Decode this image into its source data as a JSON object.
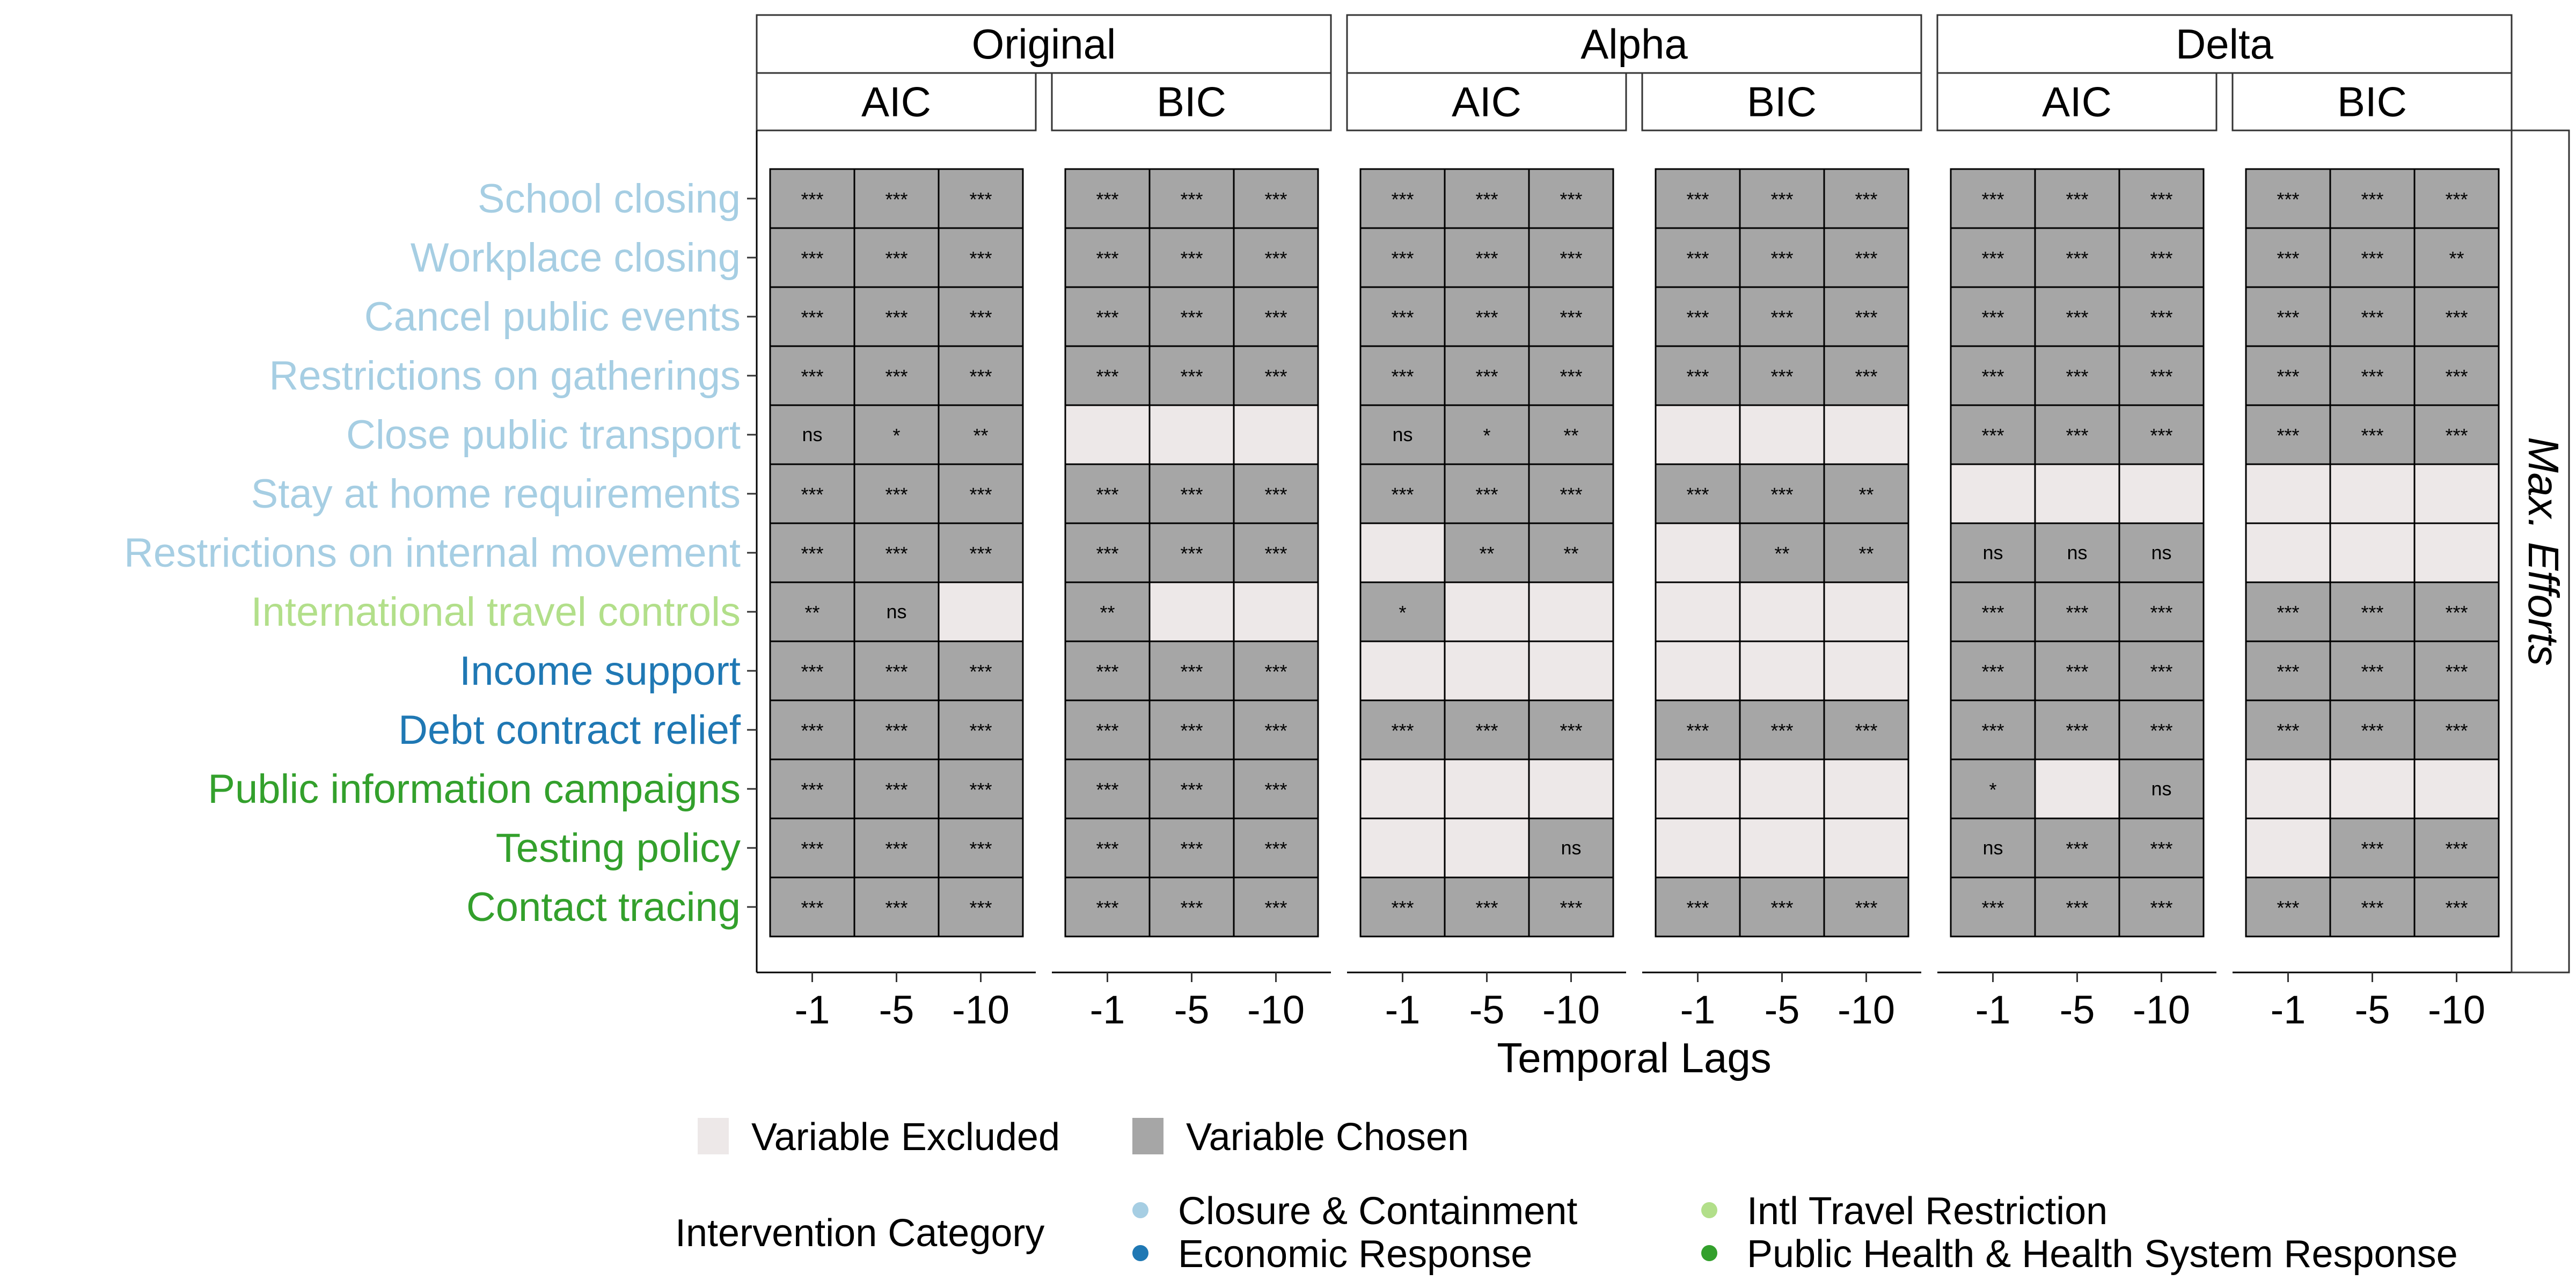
{
  "chart_data": {
    "type": "heatmap",
    "xlabel": "Temporal Lags",
    "x_categories": [
      "-1",
      "-5",
      "-10"
    ],
    "side_strip": "Max. Efforts",
    "colors": {
      "chosen": "#a6a6a6",
      "excluded": "#ede8e8"
    },
    "rows": [
      {
        "label": "School closing",
        "category": "Closure & Containment"
      },
      {
        "label": "Workplace closing",
        "category": "Closure & Containment"
      },
      {
        "label": "Cancel public events",
        "category": "Closure & Containment"
      },
      {
        "label": "Restrictions on gatherings",
        "category": "Closure & Containment"
      },
      {
        "label": "Close public transport",
        "category": "Closure & Containment"
      },
      {
        "label": "Stay at home requirements",
        "category": "Closure & Containment"
      },
      {
        "label": "Restrictions on internal movement",
        "category": "Closure & Containment"
      },
      {
        "label": "International travel controls",
        "category": "Intl Travel Restriction"
      },
      {
        "label": "Income support",
        "category": "Economic Response"
      },
      {
        "label": "Debt contract relief",
        "category": "Economic Response"
      },
      {
        "label": "Public information campaigns",
        "category": "Public Health & Health System Response"
      },
      {
        "label": "Testing policy",
        "category": "Public Health & Health System Response"
      },
      {
        "label": "Contact tracing",
        "category": "Public Health & Health System Response"
      }
    ],
    "category_colors": {
      "Closure & Containment": "#a6cee3",
      "Economic Response": "#1f78b4",
      "Intl Travel Restriction": "#b2df8a",
      "Public Health & Health System Response": "#33a02c"
    },
    "groups": [
      {
        "name": "Original",
        "panels": [
          {
            "name": "AIC",
            "cells": [
              [
                "***",
                "***",
                "***"
              ],
              [
                "***",
                "***",
                "***"
              ],
              [
                "***",
                "***",
                "***"
              ],
              [
                "***",
                "***",
                "***"
              ],
              [
                "ns",
                "*",
                "**"
              ],
              [
                "***",
                "***",
                "***"
              ],
              [
                "***",
                "***",
                "***"
              ],
              [
                "**",
                "ns",
                null
              ],
              [
                "***",
                "***",
                "***"
              ],
              [
                "***",
                "***",
                "***"
              ],
              [
                "***",
                "***",
                "***"
              ],
              [
                "***",
                "***",
                "***"
              ],
              [
                "***",
                "***",
                "***"
              ]
            ]
          },
          {
            "name": "BIC",
            "cells": [
              [
                "***",
                "***",
                "***"
              ],
              [
                "***",
                "***",
                "***"
              ],
              [
                "***",
                "***",
                "***"
              ],
              [
                "***",
                "***",
                "***"
              ],
              [
                null,
                null,
                null
              ],
              [
                "***",
                "***",
                "***"
              ],
              [
                "***",
                "***",
                "***"
              ],
              [
                "**",
                null,
                null
              ],
              [
                "***",
                "***",
                "***"
              ],
              [
                "***",
                "***",
                "***"
              ],
              [
                "***",
                "***",
                "***"
              ],
              [
                "***",
                "***",
                "***"
              ],
              [
                "***",
                "***",
                "***"
              ]
            ]
          }
        ]
      },
      {
        "name": "Alpha",
        "panels": [
          {
            "name": "AIC",
            "cells": [
              [
                "***",
                "***",
                "***"
              ],
              [
                "***",
                "***",
                "***"
              ],
              [
                "***",
                "***",
                "***"
              ],
              [
                "***",
                "***",
                "***"
              ],
              [
                "ns",
                "*",
                "**"
              ],
              [
                "***",
                "***",
                "***"
              ],
              [
                null,
                "**",
                "**"
              ],
              [
                "*",
                null,
                null
              ],
              [
                null,
                null,
                null
              ],
              [
                "***",
                "***",
                "***"
              ],
              [
                null,
                null,
                null
              ],
              [
                null,
                null,
                "ns"
              ],
              [
                "***",
                "***",
                "***"
              ]
            ]
          },
          {
            "name": "BIC",
            "cells": [
              [
                "***",
                "***",
                "***"
              ],
              [
                "***",
                "***",
                "***"
              ],
              [
                "***",
                "***",
                "***"
              ],
              [
                "***",
                "***",
                "***"
              ],
              [
                null,
                null,
                null
              ],
              [
                "***",
                "***",
                "**"
              ],
              [
                null,
                "**",
                "**"
              ],
              [
                null,
                null,
                null
              ],
              [
                null,
                null,
                null
              ],
              [
                "***",
                "***",
                "***"
              ],
              [
                null,
                null,
                null
              ],
              [
                null,
                null,
                null
              ],
              [
                "***",
                "***",
                "***"
              ]
            ]
          }
        ]
      },
      {
        "name": "Delta",
        "panels": [
          {
            "name": "AIC",
            "cells": [
              [
                "***",
                "***",
                "***"
              ],
              [
                "***",
                "***",
                "***"
              ],
              [
                "***",
                "***",
                "***"
              ],
              [
                "***",
                "***",
                "***"
              ],
              [
                "***",
                "***",
                "***"
              ],
              [
                null,
                null,
                null
              ],
              [
                "ns",
                "ns",
                "ns"
              ],
              [
                "***",
                "***",
                "***"
              ],
              [
                "***",
                "***",
                "***"
              ],
              [
                "***",
                "***",
                "***"
              ],
              [
                "*",
                null,
                "ns"
              ],
              [
                "ns",
                "***",
                "***"
              ],
              [
                "***",
                "***",
                "***"
              ]
            ]
          },
          {
            "name": "BIC",
            "cells": [
              [
                "***",
                "***",
                "***"
              ],
              [
                "***",
                "***",
                "**"
              ],
              [
                "***",
                "***",
                "***"
              ],
              [
                "***",
                "***",
                "***"
              ],
              [
                "***",
                "***",
                "***"
              ],
              [
                null,
                null,
                null
              ],
              [
                null,
                null,
                null
              ],
              [
                "***",
                "***",
                "***"
              ],
              [
                "***",
                "***",
                "***"
              ],
              [
                "***",
                "***",
                "***"
              ],
              [
                null,
                null,
                null
              ],
              [
                null,
                "***",
                "***"
              ],
              [
                "***",
                "***",
                "***"
              ]
            ]
          }
        ]
      }
    ],
    "legend_fill": [
      {
        "label": "Variable Excluded",
        "key": "excluded"
      },
      {
        "label": "Variable Chosen",
        "key": "chosen"
      }
    ],
    "legend_category": {
      "title": "Intervention Category",
      "items": [
        {
          "label": "Closure & Containment",
          "key": "Closure & Containment"
        },
        {
          "label": "Economic Response",
          "key": "Economic Response"
        },
        {
          "label": "Intl Travel Restriction",
          "key": "Intl Travel Restriction"
        },
        {
          "label": "Public Health & Health System Response",
          "key": "Public Health & Health System Response"
        }
      ]
    }
  }
}
